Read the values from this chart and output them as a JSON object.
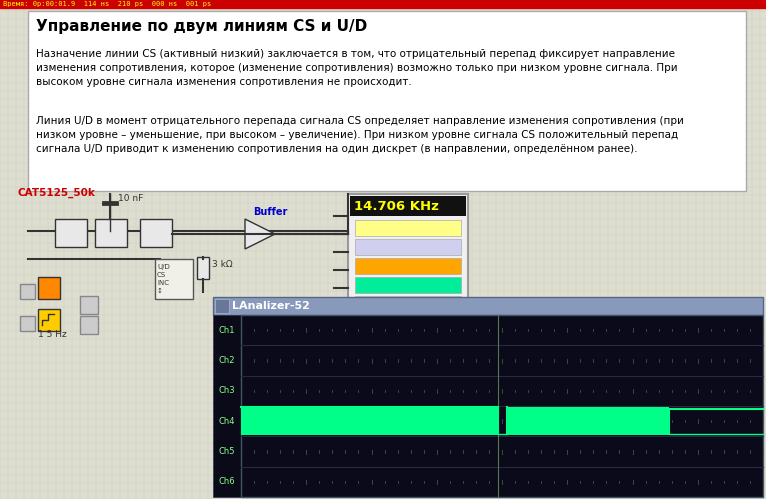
{
  "bg_color": "#d4d0c8",
  "title_bar_text": "Время: 0р:00:01.9  114 нs  210 рs  000 нs  001 рs",
  "title_bar_color": "#cc0000",
  "title_bar_text_color": "#ffff00",
  "grid_bg": "#deded0",
  "white_panel_bg": "#ffffff",
  "white_panel_border": "#aaaaaa",
  "white_panel_title": "Управление по двум линиям CS и U/D",
  "white_panel_title_color": "#000000",
  "white_panel_title_size": 11,
  "text_para1": "Назначение линии CS (активный низкий) заключается в том, что отрицательный перепад фиксирует направление\nизменения сопротивления, которое (изменение сопротивления) возможно только при низком уровне сигнала. При\nвысоком уровне сигнала изменения сопротивления не происходит.",
  "text_para2": "Линия U/D в момент отрицательного перепада сигнала CS определяет направление изменения сопротивления (при\nнизком уровне – уменьшение, при высоком – увеличение). При низком уровне сигнала CS положительный перепад\nсигнала U/D приводит к изменению сопротивления на один дискрет (в направлении, определённом ранее).",
  "text_color": "#000000",
  "text_size": 7.5,
  "freq_text": "14.706 KHz",
  "freq_text_color": "#ffff00",
  "freq_bg": "#111111",
  "freq_box_bg": "#f0f0f0",
  "freq_box_border": "#888888",
  "buffer_label": "Buffer",
  "buffer_color": "#0000cc",
  "cap_label": "10 nF",
  "res_label": "3 kΩ",
  "cat_label": "CAT5125_50k",
  "cat_color": "#cc0000",
  "hz_label": "1 5 Hz",
  "freq_box_colors": [
    "#ffff88",
    "#d0d0ee",
    "#ffa500",
    "#00ee99",
    "#ffff88"
  ],
  "analyzer_title": "LAnalizer-52",
  "analyzer_win_bg": "#c0c8d8",
  "analyzer_bg": "#0a0a1a",
  "analyzer_label_color": "#88ff88",
  "ch_labels": [
    "Ch1",
    "Ch2",
    "Ch3",
    "Ch4",
    "Ch5",
    "Ch6"
  ],
  "ch4_signal_color": "#00ff88",
  "vertical_line_x": 0.493
}
